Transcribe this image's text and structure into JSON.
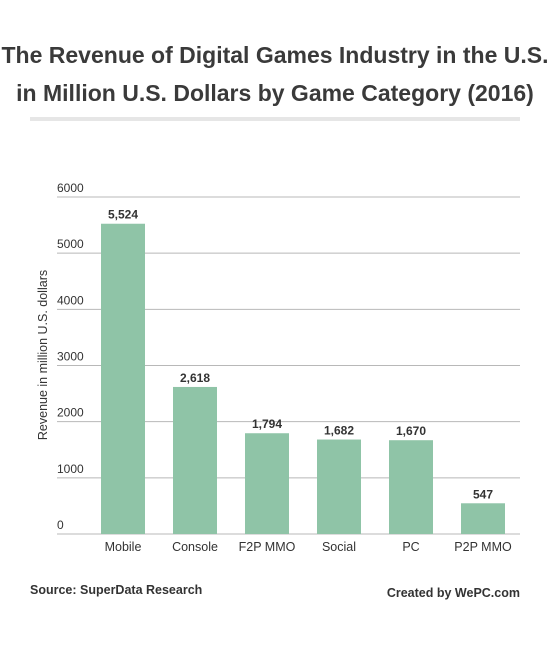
{
  "title_lines": [
    "The Revenue of Digital Games Industry in the U.S.",
    "in Million U.S. Dollars by Game Category (2016)"
  ],
  "footer": {
    "source": "Source: SuperData Research",
    "credit": "Created by WePC.com"
  },
  "colors": {
    "bar": "#8fc4a7",
    "grid": "#b8b8b8",
    "text": "#333333"
  },
  "chart_data": {
    "type": "bar",
    "title": "The Revenue of Digital Games Industry in the U.S. in Million U.S. Dollars by Game Category (2016)",
    "categories": [
      "Mobile",
      "Console",
      "F2P MMO",
      "Social",
      "PC",
      "P2P MMO"
    ],
    "values": [
      5524,
      2618,
      1794,
      1682,
      1670,
      547
    ],
    "data_labels": [
      "5,524",
      "2,618",
      "1,794",
      "1,682",
      "1,670",
      "547"
    ],
    "ylabel": "Revenue in million U.S. dollars",
    "xlabel": "",
    "ylim": [
      0,
      6000
    ],
    "yticks": [
      0,
      1000,
      2000,
      3000,
      4000,
      5000,
      6000
    ],
    "grid": true,
    "legend": "none"
  }
}
